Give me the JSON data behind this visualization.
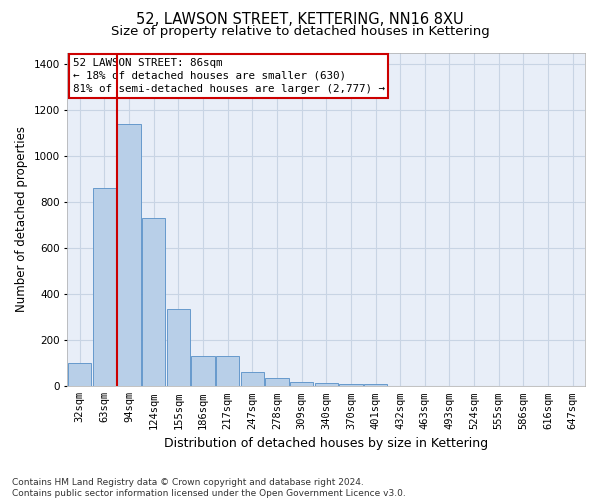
{
  "title_line1": "52, LAWSON STREET, KETTERING, NN16 8XU",
  "title_line2": "Size of property relative to detached houses in Kettering",
  "xlabel": "Distribution of detached houses by size in Kettering",
  "ylabel": "Number of detached properties",
  "footnote": "Contains HM Land Registry data © Crown copyright and database right 2024.\nContains public sector information licensed under the Open Government Licence v3.0.",
  "bins": [
    "32sqm",
    "63sqm",
    "94sqm",
    "124sqm",
    "155sqm",
    "186sqm",
    "217sqm",
    "247sqm",
    "278sqm",
    "309sqm",
    "340sqm",
    "370sqm",
    "401sqm",
    "432sqm",
    "463sqm",
    "493sqm",
    "524sqm",
    "555sqm",
    "586sqm",
    "616sqm",
    "647sqm"
  ],
  "values": [
    100,
    860,
    1140,
    730,
    335,
    130,
    130,
    60,
    35,
    20,
    15,
    10,
    10,
    0,
    0,
    0,
    0,
    0,
    0,
    0,
    0
  ],
  "bar_color": "#b8cfe8",
  "bar_edge_color": "#6699cc",
  "bar_edge_width": 0.7,
  "grid_color": "#c8d4e4",
  "bg_color": "#e8eef8",
  "red_line_color": "#cc0000",
  "red_line_x": 1.5,
  "annotation_text": "52 LAWSON STREET: 86sqm\n← 18% of detached houses are smaller (630)\n81% of semi-detached houses are larger (2,777) →",
  "annotation_box_color": "#cc0000",
  "ylim": [
    0,
    1450
  ],
  "yticks": [
    0,
    200,
    400,
    600,
    800,
    1000,
    1200,
    1400
  ],
  "title_fontsize": 10.5,
  "subtitle_fontsize": 9.5,
  "ylabel_fontsize": 8.5,
  "xlabel_fontsize": 9,
  "tick_fontsize": 7.5,
  "annotation_fontsize": 7.8,
  "footnote_fontsize": 6.5
}
